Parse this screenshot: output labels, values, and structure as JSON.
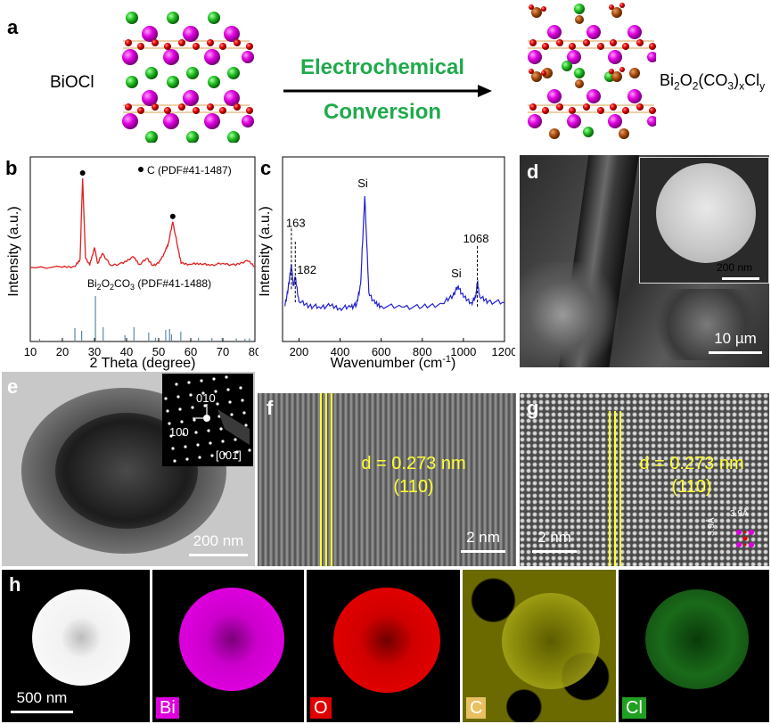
{
  "panel_a": {
    "label": "a",
    "left_name": "BiOCl",
    "arrow_top": "Electrochemical",
    "arrow_bottom": "Conversion",
    "right_name_parts": [
      "Bi",
      "2",
      "O",
      "2",
      "(CO",
      "3",
      ")",
      "x",
      "Cl",
      "y"
    ]
  },
  "panel_b": {
    "label": "b",
    "legend_marker": "C (PDF#41-1487)",
    "ref_label_parts": [
      "Bi",
      "2",
      "O",
      "2",
      "CO",
      "3",
      " (PDF#41-1488)"
    ],
    "xlabel": "2 Theta (degree)",
    "ylabel": "Intensity (a.u.)",
    "xticks": [
      "10",
      "20",
      "30",
      "40",
      "50",
      "60",
      "70",
      "80"
    ]
  },
  "panel_c": {
    "label": "c",
    "xlabel_parts": [
      "Wavenumber (cm",
      "-1",
      ")"
    ],
    "ylabel": "Intensity (a.u.)",
    "xticks": [
      "200",
      "400",
      "600",
      "800",
      "1000",
      "1200"
    ],
    "annotations": [
      "163",
      "182",
      "Si",
      "Si",
      "1068"
    ]
  },
  "panel_d": {
    "label": "d",
    "scale_main": "10 µm",
    "scale_inset": "200 nm"
  },
  "panel_e": {
    "label": "e",
    "scale": "200 nm",
    "saed_010": "010",
    "saed_100": "100",
    "saed_zone": "[001]"
  },
  "panel_f": {
    "label": "f",
    "d_spacing": "d = 0.273 nm",
    "plane": "(110)",
    "scale": "2 nm"
  },
  "panel_g": {
    "label": "g",
    "d_spacing": "d = 0.273 nm",
    "plane": "(110)",
    "scale": "2 nm",
    "lattice_a": "3.9Å",
    "lattice_b": "3.9Å"
  },
  "panel_h": {
    "label": "h",
    "scale": "500 nm",
    "elements": [
      "Bi",
      "O",
      "C",
      "Cl"
    ]
  },
  "colors": {
    "xrd": "#e02020",
    "raman": "#2020d0",
    "bi": "#dd00dd",
    "o": "#e00000",
    "c": "#d4d400",
    "cl": "#20a020",
    "annot_yellow": "#ffff33"
  },
  "chart_data": [
    {
      "type": "line",
      "title": "",
      "xlabel": "2 Theta (degree)",
      "ylabel": "Intensity (a.u.)",
      "xlim": [
        10,
        80
      ],
      "series": [
        {
          "name": "XRD pattern",
          "x": [
            10,
            20,
            24,
            25.5,
            26.3,
            27.2,
            28.5,
            30,
            31,
            32.5,
            35,
            39,
            42,
            44,
            46.5,
            48,
            50,
            52,
            53,
            54.4,
            56,
            57,
            60,
            63,
            66,
            70,
            74,
            77.5,
            80
          ],
          "values": [
            2,
            2,
            3,
            10,
            92,
            12,
            4,
            22,
            6,
            16,
            4,
            6,
            13,
            5,
            11,
            4,
            6,
            18,
            26,
            48,
            22,
            6,
            5,
            6,
            4,
            6,
            4,
            9,
            3
          ]
        },
        {
          "name": "Bi2O2CO3 (PDF#41-1488)",
          "type": "stick",
          "x": [
            12.9,
            23.9,
            26.0,
            30.3,
            32.7,
            39.5,
            42.3,
            46.9,
            49.0,
            52.2,
            53.4,
            54.0,
            56.9,
            62.4,
            66.6,
            69.8,
            74.2,
            76.9,
            78.3
          ],
          "values": [
            4,
            28,
            22,
            100,
            30,
            12,
            30,
            18,
            6,
            24,
            26,
            14,
            20,
            6,
            6,
            6,
            5,
            4,
            5
          ]
        }
      ],
      "markers": [
        {
          "x": 26.3,
          "label": "C"
        },
        {
          "x": 54.4,
          "label": "C"
        }
      ]
    },
    {
      "type": "line",
      "title": "",
      "xlabel": "Wavenumber (cm-1)",
      "ylabel": "Intensity (a.u.)",
      "xlim": [
        120,
        1200
      ],
      "series": [
        {
          "name": "Raman spectrum",
          "x": [
            130,
            145,
            163,
            172,
            182,
            200,
            250,
            300,
            350,
            400,
            450,
            480,
            500,
            520,
            540,
            570,
            600,
            700,
            800,
            900,
            950,
            975,
            1000,
            1040,
            1060,
            1068,
            1080,
            1120,
            1200
          ],
          "values": [
            30,
            42,
            68,
            48,
            56,
            34,
            30,
            29,
            30,
            28,
            29,
            31,
            50,
            130,
            42,
            32,
            30,
            29,
            29,
            32,
            40,
            48,
            38,
            33,
            38,
            52,
            38,
            34,
            33
          ]
        }
      ],
      "annotations": [
        {
          "x": 163,
          "label": "163"
        },
        {
          "x": 182,
          "label": "182"
        },
        {
          "x": 520,
          "label": "Si"
        },
        {
          "x": 975,
          "label": "Si"
        },
        {
          "x": 1068,
          "label": "1068"
        }
      ]
    }
  ]
}
